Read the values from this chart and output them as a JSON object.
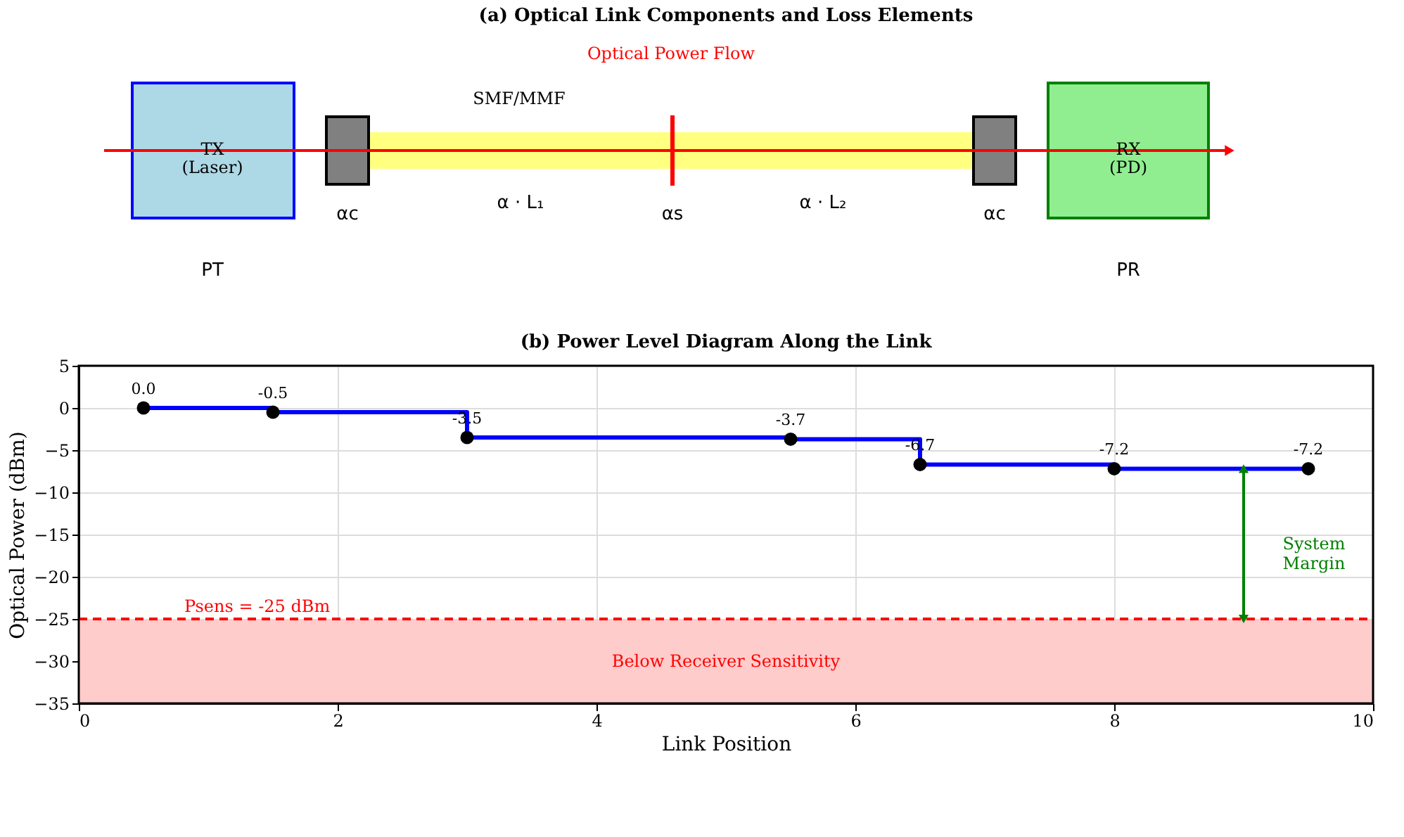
{
  "chart_data": [
    {
      "type": "other",
      "title": "(a) Optical Link Components and Loss Elements",
      "annotations": [
        "Optical Power Flow",
        "SMF/MMF",
        "TX\n(Laser)",
        "RX\n(PD)",
        "αc",
        "α · L₁",
        "αs",
        "α · L₂",
        "αc",
        "PT",
        "PR"
      ]
    },
    {
      "type": "step",
      "title": "(b) Power Level Diagram Along the Link",
      "xlabel": "Link Position",
      "ylabel": "Optical Power (dBm)",
      "series": [
        {
          "color": "#0000ff",
          "x": [
            0.5,
            1.5,
            3,
            5.5,
            6.5,
            8,
            9.5
          ],
          "values": [
            0.0,
            -0.5,
            -3.5,
            -3.7,
            -6.7,
            -7.2,
            -7.2
          ]
        }
      ],
      "value_labels": [
        "0.0",
        "-0.5",
        "-3.5",
        "-3.7",
        "-6.7",
        "-7.2",
        "-7.2"
      ],
      "marker": "circle",
      "xlim": [
        0,
        10
      ],
      "xticks": [
        0,
        2,
        4,
        6,
        8,
        10
      ],
      "ylim": [
        -35,
        5
      ],
      "yticks": [
        -35,
        -30,
        -25,
        -20,
        -15,
        -10,
        -5,
        0,
        5
      ],
      "grid": true,
      "ref_lines": [
        {
          "axis": "y",
          "value": -25,
          "label": "Psens = -25 dBm",
          "color": "#ff0000",
          "line_style": "dashed"
        }
      ],
      "bands": [
        {
          "axis": "y",
          "from": -35,
          "to": -25,
          "label": "Below Receiver Sensitivity",
          "color": "#ffcccc"
        }
      ],
      "annotations": [
        "System\nMargin"
      ]
    }
  ]
}
